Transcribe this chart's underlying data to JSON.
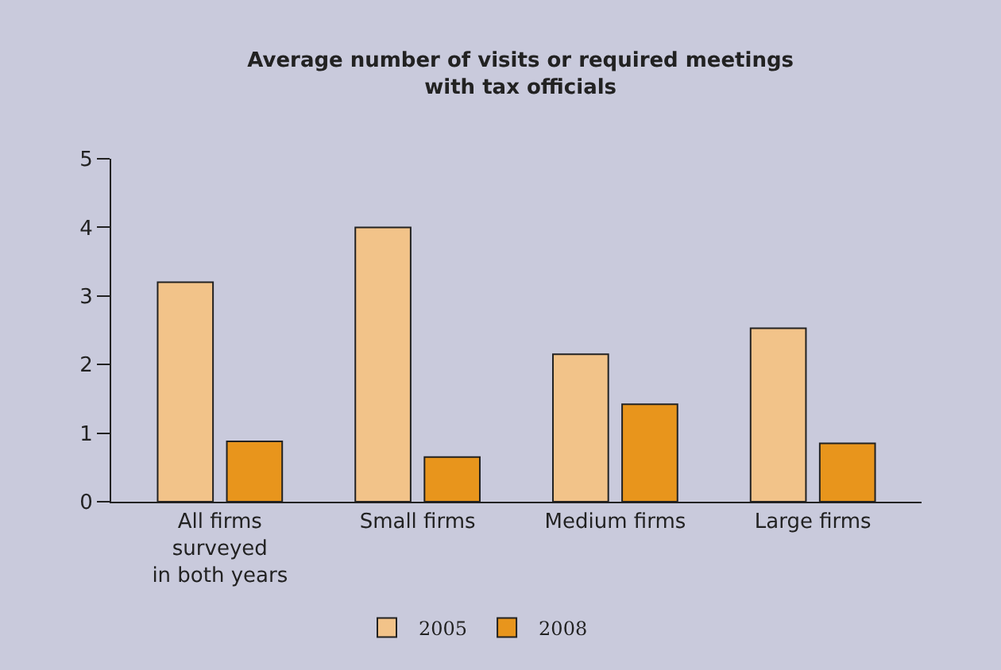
{
  "chart_data": {
    "type": "bar",
    "title": "Average number of visits or required meetings\nwith tax officials",
    "categories": [
      "All firms\nsurveyed\nin both years",
      "Small firms",
      "Medium firms",
      "Large firms"
    ],
    "series": [
      {
        "name": "2005",
        "color": "#f2c389",
        "values": [
          3.2,
          4.0,
          2.15,
          2.53
        ]
      },
      {
        "name": "2008",
        "color": "#e8951c",
        "values": [
          0.88,
          0.65,
          1.42,
          0.85
        ]
      }
    ],
    "ylim": [
      0,
      5
    ],
    "yticks": [
      0,
      1,
      2,
      3,
      4,
      5
    ],
    "grid": false,
    "legend": "bottom"
  }
}
